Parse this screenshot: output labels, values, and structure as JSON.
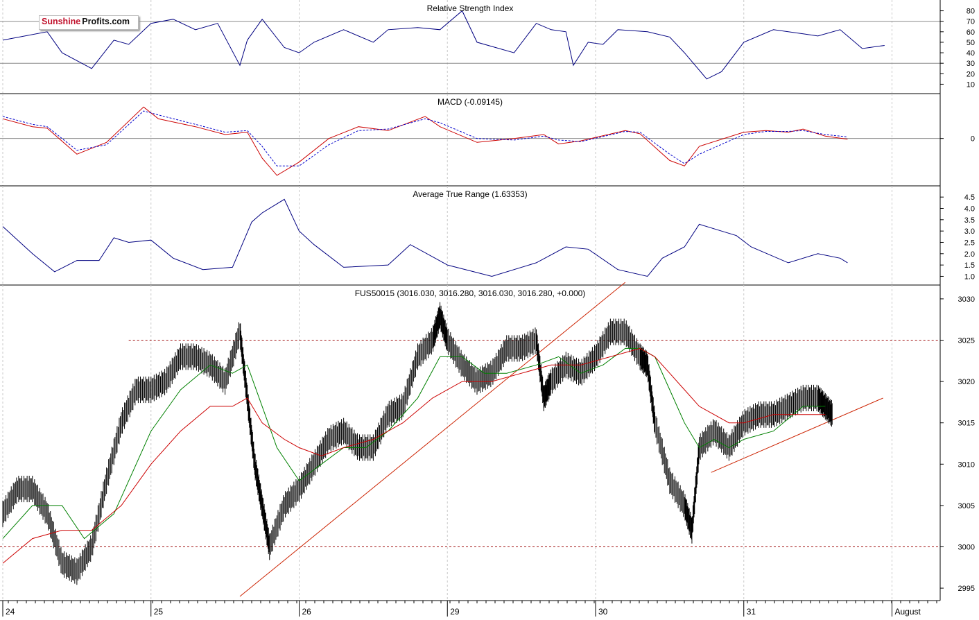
{
  "logo": {
    "part1": "Sunshine",
    "part2": "Profits.com"
  },
  "chart_data": [
    {
      "type": "line",
      "title": "Relative Strength Index",
      "ylim": [
        5,
        85
      ],
      "y_ticks": [
        "80",
        "70",
        "60",
        "50",
        "40",
        "30",
        "20",
        "10"
      ],
      "y_tick_values": [
        80,
        70,
        60,
        50,
        40,
        30,
        20,
        10
      ],
      "reference_lines": [
        70,
        30
      ],
      "series": [
        {
          "color": "#000080",
          "x": [
            0,
            0.3,
            0.4,
            0.6,
            0.75,
            0.85,
            1.0,
            1.15,
            1.3,
            1.45,
            1.6,
            1.65,
            1.75,
            1.9,
            2.0,
            2.1,
            2.3,
            2.5,
            2.6,
            2.8,
            2.95,
            3.1,
            3.2,
            3.45,
            3.6,
            3.7,
            3.8,
            3.85,
            3.95,
            4.05,
            4.15,
            4.35,
            4.5,
            4.6,
            4.75,
            4.85,
            5.0,
            5.2,
            5.4,
            5.5,
            5.65,
            5.8,
            5.95
          ],
          "y": [
            52,
            60,
            40,
            25,
            52,
            48,
            68,
            72,
            62,
            68,
            28,
            52,
            72,
            45,
            40,
            50,
            62,
            50,
            62,
            64,
            62,
            80,
            50,
            40,
            68,
            62,
            60,
            28,
            50,
            48,
            62,
            60,
            55,
            40,
            15,
            22,
            50,
            62,
            58,
            56,
            62,
            44,
            47
          ]
        }
      ]
    },
    {
      "type": "line",
      "title": "MACD (-0.09145)",
      "ylim": [
        -5.5,
        5
      ],
      "y_ticks": [
        "0"
      ],
      "y_tick_values": [
        0
      ],
      "reference_lines": [
        0
      ],
      "series": [
        {
          "color": "#cc0000",
          "x": [
            0,
            0.2,
            0.3,
            0.5,
            0.7,
            0.95,
            1.05,
            1.3,
            1.5,
            1.65,
            1.75,
            1.85,
            2.0,
            2.2,
            2.4,
            2.6,
            2.85,
            2.95,
            3.2,
            3.45,
            3.65,
            3.75,
            3.9,
            4.2,
            4.3,
            4.5,
            4.6,
            4.7,
            5.0,
            5.15,
            5.3,
            5.4,
            5.55,
            5.7
          ],
          "y": [
            2.5,
            1.5,
            1.3,
            -2,
            -0.5,
            4,
            2.5,
            1.5,
            0.5,
            0.8,
            -2.5,
            -4.7,
            -3,
            0,
            1.5,
            1,
            2.8,
            1.5,
            -0.5,
            0,
            0.5,
            -0.7,
            -0.3,
            1.0,
            0.6,
            -2.8,
            -3.5,
            -1,
            0.8,
            1.0,
            0.8,
            1.2,
            0.3,
            -0.1
          ]
        },
        {
          "color": "#0000cc",
          "dashed": true,
          "x": [
            0,
            0.2,
            0.3,
            0.5,
            0.7,
            0.95,
            1.05,
            1.3,
            1.5,
            1.65,
            1.75,
            1.85,
            2.0,
            2.2,
            2.4,
            2.6,
            2.85,
            2.95,
            3.2,
            3.45,
            3.65,
            3.75,
            3.9,
            4.2,
            4.3,
            4.5,
            4.6,
            4.7,
            5.0,
            5.15,
            5.3,
            5.4,
            5.55,
            5.7
          ],
          "y": [
            2.8,
            1.8,
            1.5,
            -1.5,
            -0.8,
            3.5,
            3,
            1.8,
            0.8,
            1.0,
            -1,
            -3.5,
            -3.5,
            -0.8,
            1.0,
            1.2,
            2.5,
            2.0,
            0,
            -0.2,
            0.3,
            -0.2,
            -0.4,
            0.9,
            0.8,
            -2,
            -3.2,
            -2,
            0.5,
            0.9,
            0.9,
            1.0,
            0.5,
            0.2
          ]
        }
      ]
    },
    {
      "type": "line",
      "title": "Average True Range (1.63353)",
      "ylim": [
        0.8,
        4.75
      ],
      "y_ticks": [
        "4.5",
        "4.0",
        "3.5",
        "3.0",
        "2.5",
        "2.0",
        "1.5",
        "1.0"
      ],
      "y_tick_values": [
        4.5,
        4.0,
        3.5,
        3.0,
        2.5,
        2.0,
        1.5,
        1.0
      ],
      "series": [
        {
          "color": "#000080",
          "x": [
            0,
            0.2,
            0.35,
            0.5,
            0.65,
            0.75,
            0.85,
            1.0,
            1.15,
            1.35,
            1.55,
            1.68,
            1.75,
            1.9,
            2.0,
            2.1,
            2.3,
            2.6,
            2.75,
            3.0,
            3.3,
            3.6,
            3.8,
            3.95,
            4.15,
            4.35,
            4.45,
            4.6,
            4.7,
            4.85,
            4.95,
            5.05,
            5.3,
            5.5,
            5.65,
            5.7
          ],
          "y": [
            3.2,
            2.0,
            1.2,
            1.7,
            1.7,
            2.7,
            2.5,
            2.6,
            1.8,
            1.3,
            1.4,
            3.4,
            3.8,
            4.4,
            3.0,
            2.4,
            1.4,
            1.5,
            2.4,
            1.5,
            1.0,
            1.6,
            2.3,
            2.2,
            1.3,
            1.0,
            1.8,
            2.3,
            3.3,
            3.0,
            2.8,
            2.3,
            1.6,
            2.0,
            1.8,
            1.6
          ]
        }
      ]
    },
    {
      "type": "line",
      "title": "FUS50015 (3016.030, 3016.280, 3016.030, 3016.280, +0.000)",
      "ylim": [
        2994,
        3031
      ],
      "y_ticks": [
        "3030",
        "3025",
        "3020",
        "3015",
        "3010",
        "3005",
        "3000",
        "2995"
      ],
      "y_tick_values": [
        3030,
        3025,
        3020,
        3015,
        3010,
        3005,
        3000,
        2995
      ],
      "x_tick_labels": [
        "24",
        "25",
        "26",
        "29",
        "30",
        "31",
        "August"
      ],
      "x_tick_values": [
        0,
        1,
        2,
        3,
        4,
        5,
        6
      ],
      "xlim": [
        0,
        6.4
      ],
      "price": {
        "color": "#000000",
        "x": [
          0,
          0.1,
          0.2,
          0.3,
          0.4,
          0.5,
          0.6,
          0.7,
          0.8,
          0.9,
          1.0,
          1.1,
          1.2,
          1.3,
          1.4,
          1.5,
          1.6,
          1.65,
          1.7,
          1.75,
          1.8,
          1.9,
          2.0,
          2.1,
          2.2,
          2.3,
          2.4,
          2.5,
          2.6,
          2.7,
          2.8,
          2.9,
          2.95,
          3.0,
          3.1,
          3.2,
          3.3,
          3.4,
          3.5,
          3.6,
          3.65,
          3.7,
          3.8,
          3.9,
          4.0,
          4.1,
          4.2,
          4.3,
          4.35,
          4.4,
          4.5,
          4.6,
          4.65,
          4.7,
          4.8,
          4.9,
          5.0,
          5.1,
          5.2,
          5.3,
          5.4,
          5.5,
          5.55,
          5.6
        ],
        "y": [
          3004,
          3007,
          3007,
          3004,
          2998,
          2997,
          3000,
          3008,
          3015,
          3019,
          3019,
          3020,
          3023,
          3023,
          3022,
          3020,
          3026,
          3018,
          3010,
          3005,
          3000,
          3005,
          3007,
          3010,
          3013,
          3014,
          3012,
          3012,
          3016,
          3017,
          3023,
          3025,
          3028,
          3025,
          3022,
          3020,
          3021,
          3024,
          3024,
          3025,
          3018,
          3020,
          3022,
          3021,
          3023,
          3026,
          3026,
          3023,
          3022,
          3015,
          3008,
          3005,
          3002,
          3012,
          3014,
          3012,
          3015,
          3016,
          3016,
          3017,
          3018,
          3018,
          3017,
          3016
        ]
      },
      "series": [
        {
          "color": "#008000",
          "x": [
            0,
            0.2,
            0.4,
            0.55,
            0.75,
            1.0,
            1.2,
            1.4,
            1.55,
            1.65,
            1.75,
            1.85,
            2.0,
            2.15,
            2.3,
            2.45,
            2.6,
            2.8,
            2.95,
            3.1,
            3.25,
            3.4,
            3.6,
            3.75,
            3.9,
            4.05,
            4.2,
            4.3,
            4.4,
            4.5,
            4.6,
            4.7,
            4.8,
            4.9,
            5.0,
            5.2,
            5.4,
            5.55
          ],
          "y": [
            3001,
            3005,
            3005,
            3001,
            3004,
            3014,
            3019,
            3022,
            3021,
            3022,
            3017,
            3012,
            3008,
            3010,
            3012,
            3012,
            3014,
            3018,
            3023,
            3023,
            3021,
            3021,
            3022,
            3023,
            3021,
            3022,
            3024,
            3024,
            3023,
            3019,
            3015,
            3012,
            3013,
            3012,
            3013,
            3014,
            3017,
            3017
          ]
        },
        {
          "color": "#cc0000",
          "x": [
            0,
            0.2,
            0.4,
            0.6,
            0.8,
            1.0,
            1.2,
            1.4,
            1.55,
            1.65,
            1.75,
            1.9,
            2.0,
            2.15,
            2.3,
            2.5,
            2.7,
            2.9,
            3.1,
            3.3,
            3.5,
            3.7,
            3.9,
            4.1,
            4.3,
            4.4,
            4.5,
            4.6,
            4.7,
            4.8,
            4.9,
            5.0,
            5.2,
            5.4,
            5.55
          ],
          "y": [
            2998,
            3001,
            3002,
            3002,
            3005,
            3010,
            3014,
            3017,
            3017,
            3018,
            3015,
            3013,
            3012,
            3011,
            3012,
            3013,
            3015,
            3018,
            3020,
            3020,
            3021,
            3022,
            3022,
            3023,
            3024,
            3023,
            3021,
            3019,
            3017,
            3016,
            3015,
            3015,
            3016,
            3016,
            3016
          ]
        }
      ],
      "horizontal_levels": [
        3025,
        3000
      ],
      "trendlines": [
        {
          "x": [
            1.6,
            4.2
          ],
          "y": [
            2994,
            3032
          ]
        },
        {
          "x": [
            4.78,
            5.94
          ],
          "y": [
            3009,
            3018
          ]
        }
      ]
    }
  ]
}
